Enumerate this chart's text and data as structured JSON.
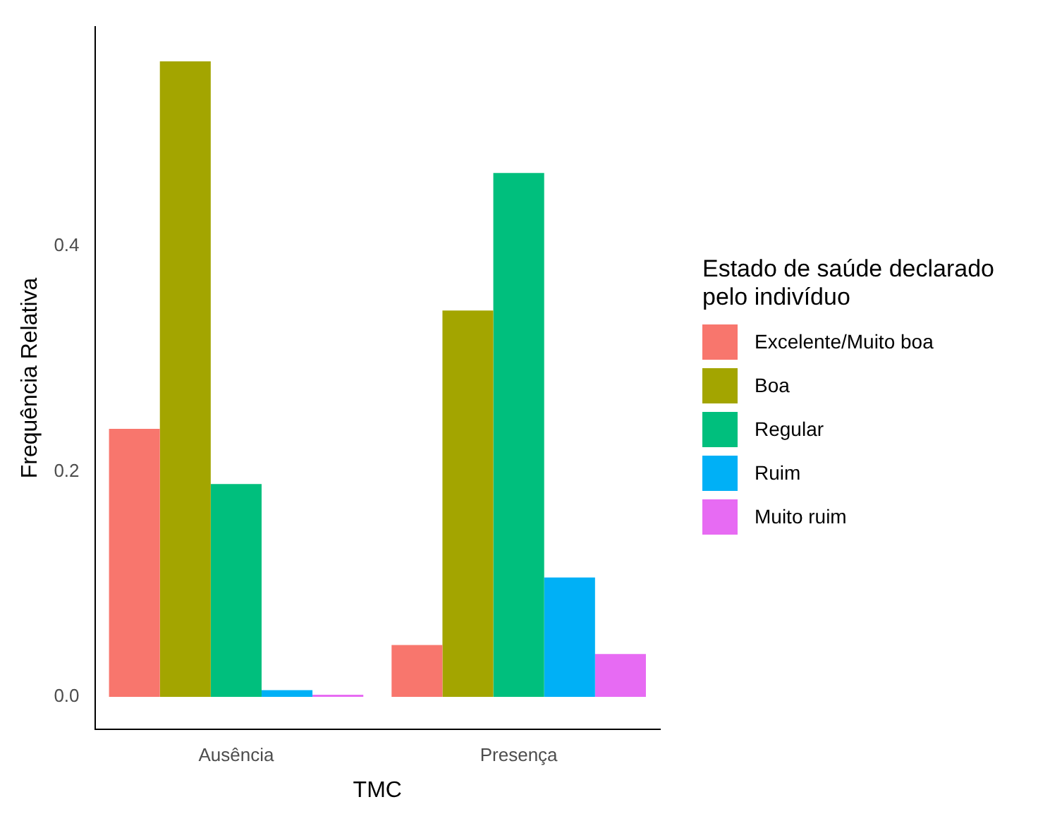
{
  "chart_data": {
    "type": "bar",
    "xlabel": "TMC",
    "ylabel": "Frequência Relativa",
    "legend_title": "Estado de saúde declarado pelo indivíduo",
    "legend": "right",
    "grid": false,
    "categories": [
      "Ausência",
      "Presença"
    ],
    "ylim": [
      -0.029,
      0.595
    ],
    "yticks": [
      {
        "value": 0,
        "label": "0.0"
      },
      0.2,
      0.4
    ],
    "series": [
      {
        "name": "Excelente/Muito boa",
        "color": "#f8766d",
        "values": [
          0.238,
          0.046
        ]
      },
      {
        "name": "Boa",
        "color": "#a3a500",
        "values": [
          0.564,
          0.343
        ]
      },
      {
        "name": "Regular",
        "color": "#00bf7d",
        "values": [
          0.189,
          0.465
        ]
      },
      {
        "name": "Ruim",
        "color": "#00b0f6",
        "values": [
          0.006,
          0.106
        ]
      },
      {
        "name": "Muito ruim",
        "color": "#e76bf3",
        "values": [
          0.002,
          0.038
        ]
      }
    ]
  }
}
